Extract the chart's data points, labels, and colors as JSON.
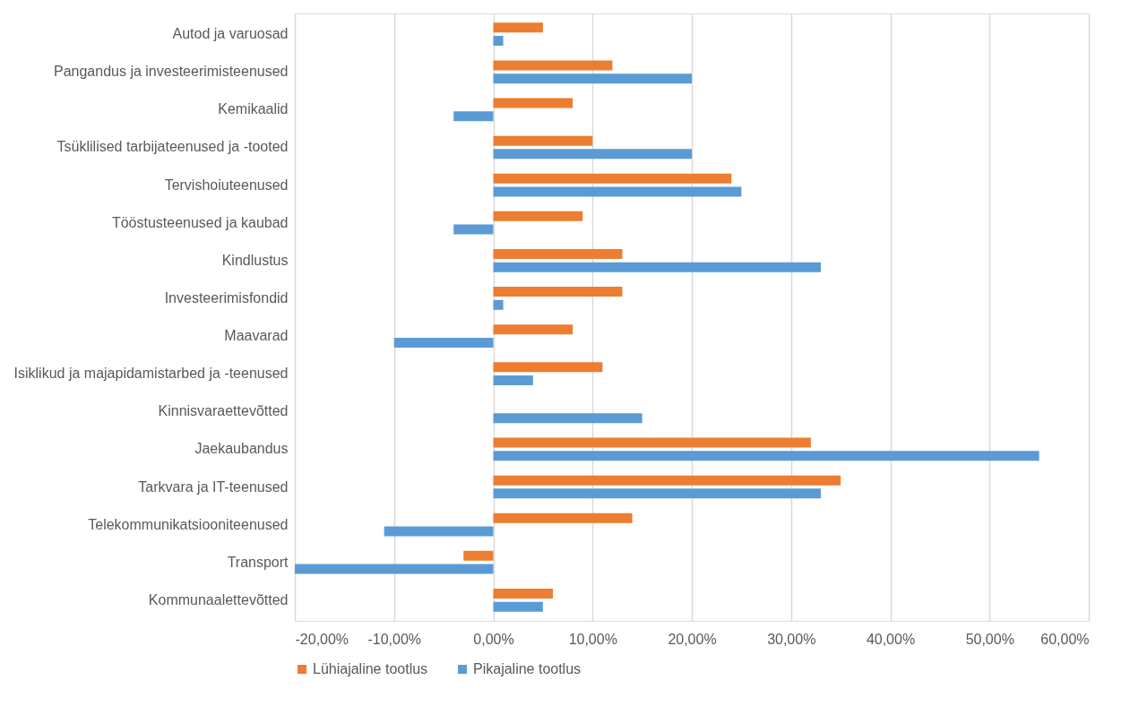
{
  "chart_data": {
    "type": "bar",
    "orientation": "horizontal",
    "categories": [
      "Autod ja varuosad",
      "Pangandus ja investeerimisteenused",
      "Kemikaalid",
      "Tsüklilised tarbijateenused ja -tooted",
      "Tervishoiuteenused",
      "Tööstusteenused ja kaubad",
      "Kindlustus",
      "Investeerimisfondid",
      "Maavarad",
      "Isiklikud ja majapidamistarbed ja -teenused",
      "Kinnisvaraettevõtted",
      "Jaekaubandus",
      "Tarkvara ja IT-teenused",
      "Telekommunikatsiooniteenused",
      "Transport",
      "Kommunaalettevõtted"
    ],
    "series": [
      {
        "name": "Lühiajaline tootlus",
        "color": "#ed7d31",
        "values": [
          5,
          12,
          8,
          10,
          24,
          9,
          13,
          13,
          8,
          11,
          0,
          32,
          35,
          14,
          -3,
          6
        ]
      },
      {
        "name": "Pikajaline tootlus",
        "color": "#5b9bd5",
        "values": [
          1,
          20,
          -4,
          20,
          25,
          -4,
          33,
          1,
          -10,
          4,
          15,
          55,
          33,
          -11,
          -20,
          5
        ]
      }
    ],
    "xlim": [
      -20,
      60
    ],
    "xticks": [
      {
        "value": -20,
        "label": "-20,00%"
      },
      {
        "value": -10,
        "label": "-10,00%"
      },
      {
        "value": 0,
        "label": "0,00%"
      },
      {
        "value": 10,
        "label": "10,00%"
      },
      {
        "value": 20,
        "label": "20,00%"
      },
      {
        "value": 30,
        "label": "30,00%"
      },
      {
        "value": 40,
        "label": "40,00%"
      },
      {
        "value": 50,
        "label": "50,00%"
      },
      {
        "value": 60,
        "label": "60,00%"
      }
    ],
    "grid": "x",
    "legend": "bottom"
  }
}
